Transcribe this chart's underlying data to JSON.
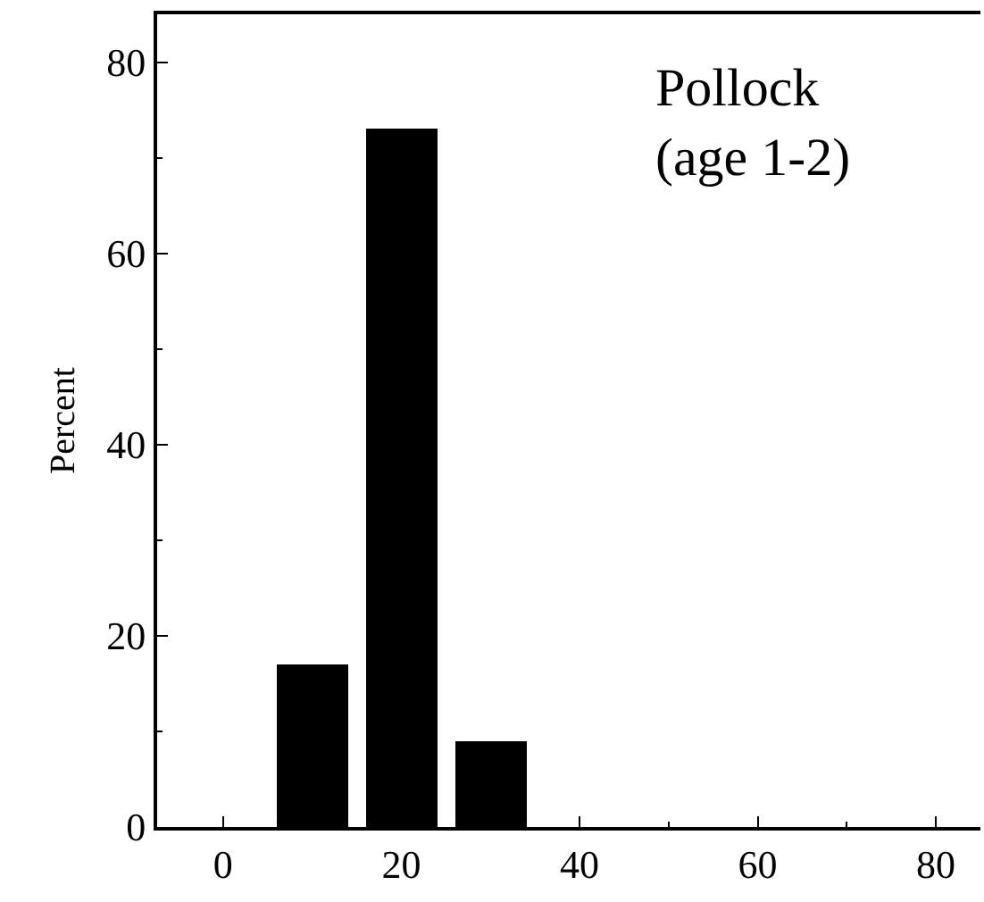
{
  "chart_data": {
    "type": "bar",
    "ylabel": "Percent",
    "annotations": [
      "Pollock\n(age 1-2)"
    ],
    "x": [
      10,
      20,
      30
    ],
    "values": [
      17,
      73,
      9
    ],
    "color": "#000000",
    "xlim": [
      -7.4,
      85
    ],
    "ylim": [
      0,
      85
    ],
    "xticks": [
      0,
      20,
      40,
      60,
      80
    ],
    "yticks": [
      0,
      20,
      40,
      60,
      80
    ]
  }
}
